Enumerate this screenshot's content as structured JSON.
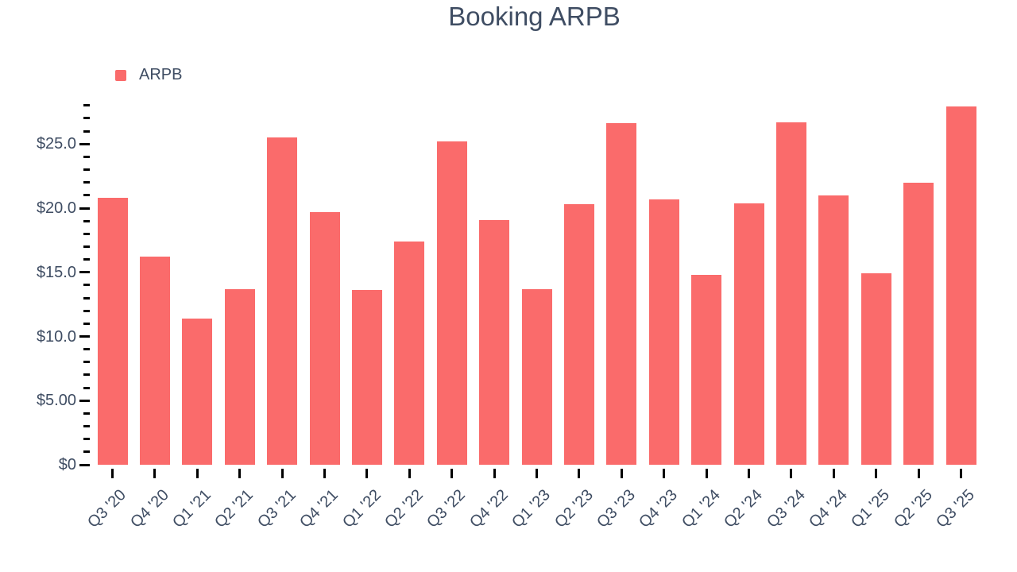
{
  "chart_data": {
    "type": "bar",
    "title": "Booking ARPB",
    "categories": [
      "Q3 '20",
      "Q4 '20",
      "Q1 '21",
      "Q2 '21",
      "Q3 '21",
      "Q4 '21",
      "Q1 '22",
      "Q2 '22",
      "Q3 '22",
      "Q4 '22",
      "Q1 '23",
      "Q2 '23",
      "Q3 '23",
      "Q4 '23",
      "Q1 '24",
      "Q2 '24",
      "Q3 '24",
      "Q4 '24",
      "Q1 '25",
      "Q2 '25",
      "Q3 '25"
    ],
    "series": [
      {
        "name": "ARPB",
        "color": "#FA6B6B",
        "values": [
          20.8,
          16.2,
          11.4,
          13.7,
          25.5,
          19.7,
          13.6,
          17.4,
          25.2,
          19.1,
          13.7,
          20.3,
          26.6,
          20.7,
          14.8,
          20.4,
          26.7,
          21.0,
          14.9,
          22.0,
          27.9
        ]
      }
    ],
    "xlabel": "",
    "ylabel": "",
    "ylim": [
      0,
      28
    ],
    "y_major_ticks": [
      {
        "value": 0,
        "label": "$0"
      },
      {
        "value": 5,
        "label": "$5.00"
      },
      {
        "value": 10,
        "label": "$10.0"
      },
      {
        "value": 15,
        "label": "$15.0"
      },
      {
        "value": 20,
        "label": "$20.0"
      },
      {
        "value": 25,
        "label": "$25.0"
      }
    ],
    "y_minor_tick_step": 1,
    "grid": false,
    "legend_position": "top-left",
    "x_tick_rotation": -45,
    "text_color": "#3F4D63",
    "tick_color": "#000000"
  }
}
